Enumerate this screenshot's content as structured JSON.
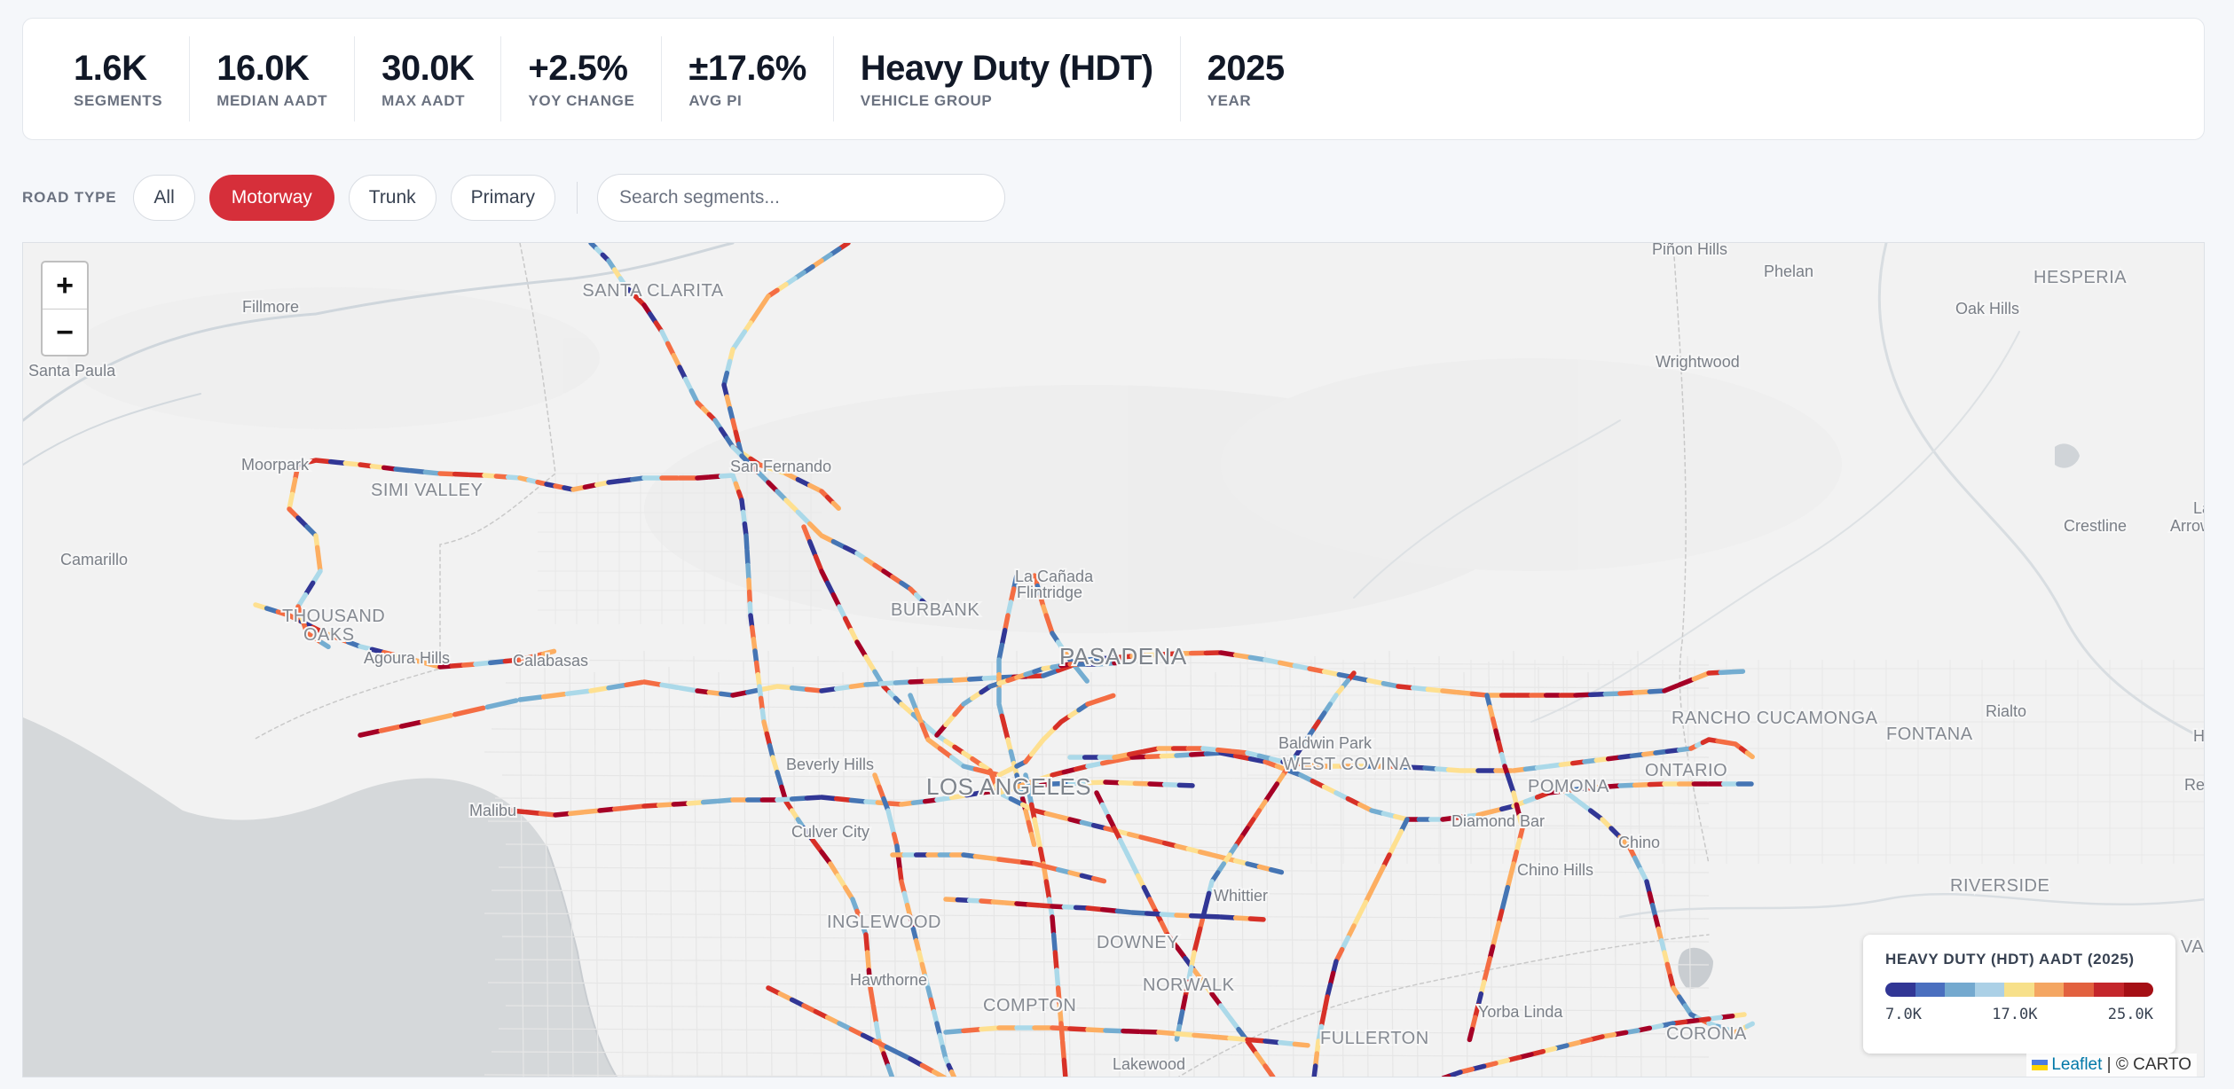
{
  "stats": [
    {
      "value": "1.6K",
      "label": "SEGMENTS"
    },
    {
      "value": "16.0K",
      "label": "MEDIAN AADT"
    },
    {
      "value": "30.0K",
      "label": "MAX AADT"
    },
    {
      "value": "+2.5%",
      "label": "YOY CHANGE"
    },
    {
      "value": "±17.6%",
      "label": "AVG PI"
    },
    {
      "value": "Heavy Duty (HDT)",
      "label": "VEHICLE GROUP"
    },
    {
      "value": "2025",
      "label": "YEAR"
    }
  ],
  "filters": {
    "label": "ROAD TYPE",
    "options": [
      "All",
      "Motorway",
      "Trunk",
      "Primary"
    ],
    "active": "Motorway",
    "search_placeholder": "Search segments..."
  },
  "map": {
    "zoom_in": "+",
    "zoom_out": "−",
    "places": [
      {
        "name": "SANTA CLARITA",
        "kind": "city"
      },
      {
        "name": "Fillmore",
        "kind": "town"
      },
      {
        "name": "Santa Paula",
        "kind": "town"
      },
      {
        "name": "Moorpark",
        "kind": "town"
      },
      {
        "name": "SIMI VALLEY",
        "kind": "city"
      },
      {
        "name": "San Fernando",
        "kind": "town"
      },
      {
        "name": "Camarillo",
        "kind": "town"
      },
      {
        "name": "THOUSAND",
        "kind": "city"
      },
      {
        "name": "OAKS",
        "kind": "city"
      },
      {
        "name": "Agoura Hills",
        "kind": "town"
      },
      {
        "name": "Calabasas",
        "kind": "town"
      },
      {
        "name": "BURBANK",
        "kind": "city"
      },
      {
        "name": "La Cañada",
        "kind": "town"
      },
      {
        "name": "Flintridge",
        "kind": "town"
      },
      {
        "name": "PASADENA",
        "kind": "big"
      },
      {
        "name": "Beverly Hills",
        "kind": "town"
      },
      {
        "name": "LOS ANGELES",
        "kind": "big"
      },
      {
        "name": "Malibu",
        "kind": "town"
      },
      {
        "name": "Culver City",
        "kind": "town"
      },
      {
        "name": "INGLEWOOD",
        "kind": "city"
      },
      {
        "name": "Hawthorne",
        "kind": "town"
      },
      {
        "name": "COMPTON",
        "kind": "city"
      },
      {
        "name": "DOWNEY",
        "kind": "city"
      },
      {
        "name": "NORWALK",
        "kind": "city"
      },
      {
        "name": "Lakewood",
        "kind": "town"
      },
      {
        "name": "Whittier",
        "kind": "town"
      },
      {
        "name": "Baldwin Park",
        "kind": "town"
      },
      {
        "name": "WEST COVINA",
        "kind": "city"
      },
      {
        "name": "POMONA",
        "kind": "city"
      },
      {
        "name": "Diamond Bar",
        "kind": "town"
      },
      {
        "name": "Chino",
        "kind": "town"
      },
      {
        "name": "Chino Hills",
        "kind": "town"
      },
      {
        "name": "ONTARIO",
        "kind": "city"
      },
      {
        "name": "RANCHO CUCAMONGA",
        "kind": "city"
      },
      {
        "name": "FONTANA",
        "kind": "city"
      },
      {
        "name": "Rialto",
        "kind": "town"
      },
      {
        "name": "RIVERSIDE",
        "kind": "city"
      },
      {
        "name": "Yorba Linda",
        "kind": "town"
      },
      {
        "name": "FULLERTON",
        "kind": "city"
      },
      {
        "name": "CORONA",
        "kind": "city"
      },
      {
        "name": "Piñon Hills",
        "kind": "town"
      },
      {
        "name": "Phelan",
        "kind": "town"
      },
      {
        "name": "HESPERIA",
        "kind": "city"
      },
      {
        "name": "Oak Hills",
        "kind": "town"
      },
      {
        "name": "Wrightwood",
        "kind": "town"
      },
      {
        "name": "Crestline",
        "kind": "town"
      },
      {
        "name": "La",
        "kind": "town"
      },
      {
        "name": "Arrow",
        "kind": "town"
      },
      {
        "name": "Hi",
        "kind": "town"
      },
      {
        "name": "Red",
        "kind": "town"
      },
      {
        "name": "VAL",
        "kind": "city"
      }
    ],
    "legend": {
      "title": "HEAVY DUTY (HDT) AADT (2025)",
      "min_label": "7.0K",
      "mid_label": "17.0K",
      "max_label": "25.0K",
      "colors": [
        "#313695",
        "#4a6fbf",
        "#74a9cf",
        "#abd0e6",
        "#f7e08a",
        "#f4a662",
        "#e2613f",
        "#c4262b",
        "#a50f15"
      ]
    },
    "attribution": {
      "leaflet": "Leaflet",
      "rest": " | © CARTO"
    },
    "road_palette": [
      "#313695",
      "#4575b4",
      "#74add1",
      "#abd9e9",
      "#fee090",
      "#fdae61",
      "#f46d43",
      "#d73027",
      "#a50026"
    ]
  }
}
